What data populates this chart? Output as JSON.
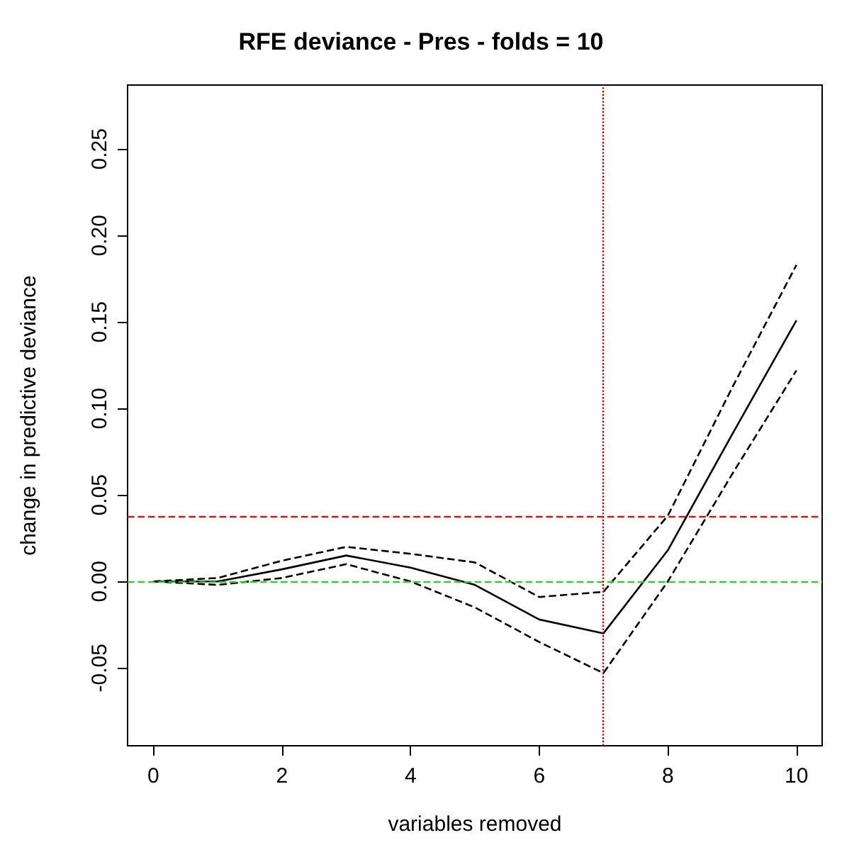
{
  "chart_data": {
    "type": "line",
    "title": "RFE deviance - Pres - folds = 10",
    "xlabel": "variables removed",
    "ylabel": "change in predictive deviance",
    "x": [
      0,
      1,
      2,
      3,
      4,
      5,
      6,
      7,
      8,
      9,
      10
    ],
    "series": [
      {
        "color": "#000000",
        "line_style": "solid",
        "values": [
          0,
          0,
          0.007,
          0.015,
          0.008,
          -0.002,
          -0.022,
          -0.03,
          0.018,
          0.085,
          0.151
        ]
      },
      {
        "color": "#000000",
        "line_style": "dashed",
        "values": [
          0,
          0.002,
          0.012,
          0.02,
          0.016,
          0.011,
          -0.009,
          -0.006,
          0.038,
          0.112,
          0.183
        ]
      },
      {
        "color": "#000000",
        "line_style": "dashed",
        "values": [
          0,
          -0.002,
          0.002,
          0.01,
          0.0,
          -0.015,
          -0.035,
          -0.053,
          0.0,
          0.062,
          0.122
        ]
      }
    ],
    "xlim": [
      -0.4,
      10.4
    ],
    "xticks": [
      0,
      2,
      4,
      6,
      8,
      10
    ],
    "ylim": [
      -0.095,
      0.287
    ],
    "yticks": [
      {
        "value": -0.05,
        "label": "-0.05"
      },
      {
        "value": 0,
        "label": "0.00"
      },
      {
        "value": 0.05,
        "label": "0.05"
      },
      {
        "value": 0.1,
        "label": "0.10"
      },
      {
        "value": 0.15,
        "label": "0.15"
      },
      {
        "value": 0.2,
        "label": "0.20"
      },
      {
        "value": 0.25,
        "label": "0.25"
      }
    ],
    "ref_lines": [
      {
        "axis": "y",
        "value": 0.038,
        "color": "#b22222",
        "line_style": "dashed"
      },
      {
        "axis": "y",
        "value": 0,
        "color": "#33cc33",
        "line_style": "dashed"
      },
      {
        "axis": "x",
        "value": 7,
        "color": "#c00000",
        "line_style": "dotted"
      }
    ],
    "grid": false,
    "marker": "none"
  }
}
